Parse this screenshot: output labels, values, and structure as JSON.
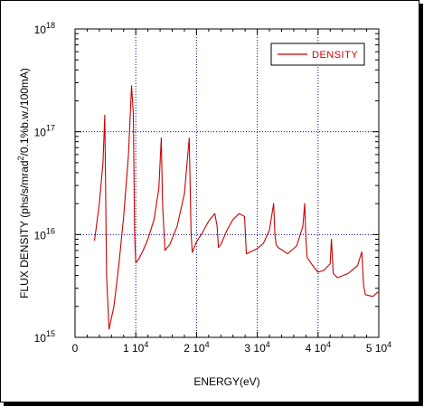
{
  "chart_data": {
    "type": "line",
    "xlabel": "ENERGY(eV)",
    "ylabel": "FLUX DENSITY (phs/s/mrad²/0.1%b.w./100mA)",
    "ylabel_parts": {
      "main": "FLUX DENSITY (phs/s/mrad",
      "sup": "2",
      "rest": "/0.1%b.w./100mA)"
    },
    "xlim": [
      0,
      50000
    ],
    "ylim": [
      1000000000000000.0,
      1e+18
    ],
    "yscale": "log",
    "grid": true,
    "legend_position": "top-right",
    "colors": {
      "series": "#cc0000",
      "grid": "#0000aa",
      "axis": "#000000"
    },
    "x_ticks": [
      {
        "value": 0,
        "base": "0",
        "exp": ""
      },
      {
        "value": 10000,
        "base": "1 10",
        "exp": "4"
      },
      {
        "value": 20000,
        "base": "2 10",
        "exp": "4"
      },
      {
        "value": 30000,
        "base": "3 10",
        "exp": "4"
      },
      {
        "value": 40000,
        "base": "4 10",
        "exp": "4"
      },
      {
        "value": 50000,
        "base": "5 10",
        "exp": "4"
      }
    ],
    "y_ticks": [
      {
        "value": 1000000000000000.0,
        "base": "10",
        "exp": "15"
      },
      {
        "value": 1e+16,
        "base": "10",
        "exp": "16"
      },
      {
        "value": 1e+17,
        "base": "10",
        "exp": "17"
      },
      {
        "value": 1e+18,
        "base": "10",
        "exp": "18"
      }
    ],
    "series": [
      {
        "name": "DENSITY",
        "x": [
          3200,
          4000,
          4600,
          4900,
          5200,
          5600,
          6400,
          7200,
          8000,
          8800,
          9300,
          9600,
          9800,
          10000,
          10500,
          11200,
          12000,
          13000,
          13800,
          14200,
          14400,
          14800,
          15600,
          16800,
          18000,
          18800,
          19100,
          19300,
          20000,
          21000,
          22000,
          23000,
          23400,
          23600,
          24000,
          25000,
          26000,
          27000,
          27900,
          28200,
          28500,
          30000,
          31000,
          32000,
          32700,
          32900,
          33100,
          33400,
          35000,
          36500,
          37500,
          37800,
          38000,
          38200,
          39000,
          40000,
          41000,
          42000,
          42200,
          42500,
          43200,
          45000,
          46500,
          47200,
          47500,
          47800,
          49000,
          50000
        ],
        "y": [
          8700000000000000.0,
          2e+16,
          5e+16,
          1.45e+17,
          4000000000000000.0,
          1200000000000000.0,
          2000000000000000.0,
          5000000000000000.0,
          1.5e+16,
          6e+16,
          2.8e+17,
          1.5e+17,
          1e+16,
          5300000000000000.0,
          5800000000000000.0,
          7000000000000000.0,
          9000000000000000.0,
          1.4e+16,
          2.8e+16,
          8.7e+16,
          2e+16,
          7000000000000000.0,
          8000000000000000.0,
          1.2e+16,
          2.5e+16,
          8.7e+16,
          1e+16,
          6700000000000000.0,
          8500000000000000.0,
          1.05e+16,
          1.35e+16,
          1.6e+16,
          1.2e+16,
          7500000000000000.0,
          8000000000000000.0,
          1.1e+16,
          1.4e+16,
          1.6e+16,
          1.5e+16,
          6500000000000000.0,
          6600000000000000.0,
          7300000000000000.0,
          8200000000000000.0,
          1.1e+16,
          2e+16,
          1e+16,
          8000000000000000.0,
          7500000000000000.0,
          6500000000000000.0,
          7800000000000000.0,
          1.2e+16,
          2e+16,
          9000000000000000.0,
          6000000000000000.0,
          5100000000000000.0,
          4300000000000000.0,
          4500000000000000.0,
          5200000000000000.0,
          9000000000000000.0,
          4200000000000000.0,
          3800000000000000.0,
          4200000000000000.0,
          5000000000000000.0,
          6800000000000000.0,
          3200000000000000.0,
          2600000000000000.0,
          2500000000000000.0,
          2800000000000000.0
        ]
      }
    ]
  }
}
